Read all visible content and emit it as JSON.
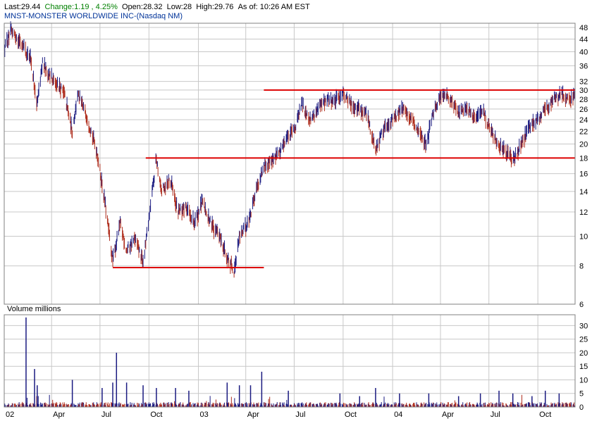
{
  "header": {
    "last": "Last:29.44",
    "change": "Change:1.19 , 4.25%",
    "open": "Open:28.32",
    "low": "Low:28",
    "high": "High:29.76",
    "asof": "As of: 10:26 AM EST"
  },
  "subtitle": "MNST-MONSTER WORLDWIDE INC-(Nasdaq NM)",
  "volume_label": "Volume  millions",
  "colors": {
    "up": "#1a1a80",
    "down": "#b03020",
    "trendline": "#dd0000",
    "grid": "#c8c8c8",
    "subtitle": "#003399",
    "change": "#008000"
  },
  "chart_data": [
    {
      "type": "line",
      "title": "MNST-MONSTER WORLDWIDE INC-(Nasdaq NM)",
      "scale": "log",
      "ylim": [
        6,
        48
      ],
      "yticks": [
        48,
        44,
        40,
        36,
        32,
        30,
        28,
        26,
        24,
        22,
        20,
        18,
        16,
        14,
        12,
        10,
        8,
        6
      ],
      "xticks": [
        "02",
        "Apr",
        "Jul",
        "Oct",
        "03",
        "Apr",
        "Jul",
        "Oct",
        "04",
        "Apr",
        "Jul",
        "Oct"
      ],
      "xlim": [
        "2002-01-02",
        "2004-12-10"
      ],
      "price_path": [
        [
          "2002-01-02",
          41
        ],
        [
          "2002-01-15",
          47
        ],
        [
          "2002-02-01",
          43
        ],
        [
          "2002-02-20",
          38
        ],
        [
          "2002-03-05",
          27
        ],
        [
          "2002-03-15",
          37
        ],
        [
          "2002-03-25",
          34
        ],
        [
          "2002-04-10",
          32
        ],
        [
          "2002-04-25",
          29
        ],
        [
          "2002-05-10",
          22
        ],
        [
          "2002-05-20",
          29
        ],
        [
          "2002-06-05",
          25
        ],
        [
          "2002-06-25",
          19
        ],
        [
          "2002-07-10",
          13
        ],
        [
          "2002-07-25",
          8.3
        ],
        [
          "2002-08-08",
          11
        ],
        [
          "2002-08-20",
          9
        ],
        [
          "2002-09-05",
          9.8
        ],
        [
          "2002-09-20",
          8.2
        ],
        [
          "2002-10-05",
          13
        ],
        [
          "2002-10-15",
          18
        ],
        [
          "2002-10-25",
          14
        ],
        [
          "2002-11-10",
          15.5
        ],
        [
          "2002-11-25",
          12
        ],
        [
          "2002-12-10",
          12.5
        ],
        [
          "2002-12-25",
          11
        ],
        [
          "2003-01-10",
          13
        ],
        [
          "2003-01-25",
          11
        ],
        [
          "2003-02-10",
          10
        ],
        [
          "2003-02-25",
          8.5
        ],
        [
          "2003-03-10",
          7.7
        ],
        [
          "2003-03-20",
          10
        ],
        [
          "2003-04-05",
          11
        ],
        [
          "2003-04-20",
          14
        ],
        [
          "2003-05-05",
          17
        ],
        [
          "2003-05-20",
          17.5
        ],
        [
          "2003-06-05",
          19
        ],
        [
          "2003-06-20",
          21
        ],
        [
          "2003-07-05",
          23
        ],
        [
          "2003-07-15",
          27
        ],
        [
          "2003-08-01",
          24
        ],
        [
          "2003-08-15",
          26
        ],
        [
          "2003-09-01",
          28
        ],
        [
          "2003-09-15",
          27.5
        ],
        [
          "2003-10-01",
          29.5
        ],
        [
          "2003-10-15",
          27
        ],
        [
          "2003-11-01",
          26
        ],
        [
          "2003-11-15",
          25
        ],
        [
          "2003-12-01",
          19
        ],
        [
          "2003-12-15",
          22
        ],
        [
          "2004-01-01",
          24
        ],
        [
          "2004-01-20",
          26
        ],
        [
          "2004-02-05",
          24
        ],
        [
          "2004-02-20",
          22
        ],
        [
          "2004-03-05",
          20
        ],
        [
          "2004-03-20",
          26
        ],
        [
          "2004-04-05",
          29
        ],
        [
          "2004-04-20",
          28
        ],
        [
          "2004-05-05",
          25
        ],
        [
          "2004-05-20",
          26.5
        ],
        [
          "2004-06-05",
          24
        ],
        [
          "2004-06-20",
          25.5
        ],
        [
          "2004-07-05",
          22
        ],
        [
          "2004-07-20",
          20
        ],
        [
          "2004-08-05",
          18.5
        ],
        [
          "2004-08-15",
          17.8
        ],
        [
          "2004-09-01",
          20
        ],
        [
          "2004-09-15",
          23
        ],
        [
          "2004-10-01",
          24
        ],
        [
          "2004-10-15",
          26
        ],
        [
          "2004-11-01",
          28
        ],
        [
          "2004-11-15",
          29
        ],
        [
          "2004-11-30",
          28
        ],
        [
          "2004-12-10",
          28.5
        ]
      ],
      "trendlines": [
        {
          "start": "2002-07-25",
          "end": "2003-05-05",
          "value": 7.9
        },
        {
          "start": "2002-09-25",
          "end": "2004-12-10",
          "value": 18
        },
        {
          "start": "2003-05-05",
          "end": "2004-12-10",
          "value": 30
        }
      ]
    },
    {
      "type": "bar",
      "title": "Volume  millions",
      "ylabel": "millions",
      "ylim": [
        0,
        34
      ],
      "yticks": [
        30,
        25,
        20,
        15,
        10,
        5,
        0
      ],
      "base_level": 1.2,
      "spikes": [
        [
          "2002-02-12",
          33
        ],
        [
          "2002-02-28",
          14
        ],
        [
          "2002-03-05",
          8
        ],
        [
          "2002-05-10",
          10
        ],
        [
          "2002-07-05",
          7
        ],
        [
          "2002-07-25",
          9
        ],
        [
          "2002-08-01",
          20
        ],
        [
          "2002-08-20",
          9
        ],
        [
          "2002-09-20",
          8
        ],
        [
          "2002-10-15",
          7
        ],
        [
          "2002-11-20",
          7
        ],
        [
          "2002-12-15",
          6
        ],
        [
          "2003-02-25",
          9
        ],
        [
          "2003-03-20",
          8
        ],
        [
          "2003-04-10",
          8
        ],
        [
          "2003-05-01",
          13
        ],
        [
          "2003-06-20",
          6
        ],
        [
          "2003-09-25",
          5
        ],
        [
          "2003-11-01",
          4
        ],
        [
          "2003-12-01",
          7
        ],
        [
          "2004-01-15",
          5
        ],
        [
          "2004-03-10",
          5
        ],
        [
          "2004-05-05",
          4
        ],
        [
          "2004-06-15",
          5
        ],
        [
          "2004-07-20",
          6
        ],
        [
          "2004-08-15",
          5
        ],
        [
          "2004-09-20",
          4
        ],
        [
          "2004-10-15",
          6
        ],
        [
          "2004-11-10",
          5
        ]
      ]
    }
  ]
}
